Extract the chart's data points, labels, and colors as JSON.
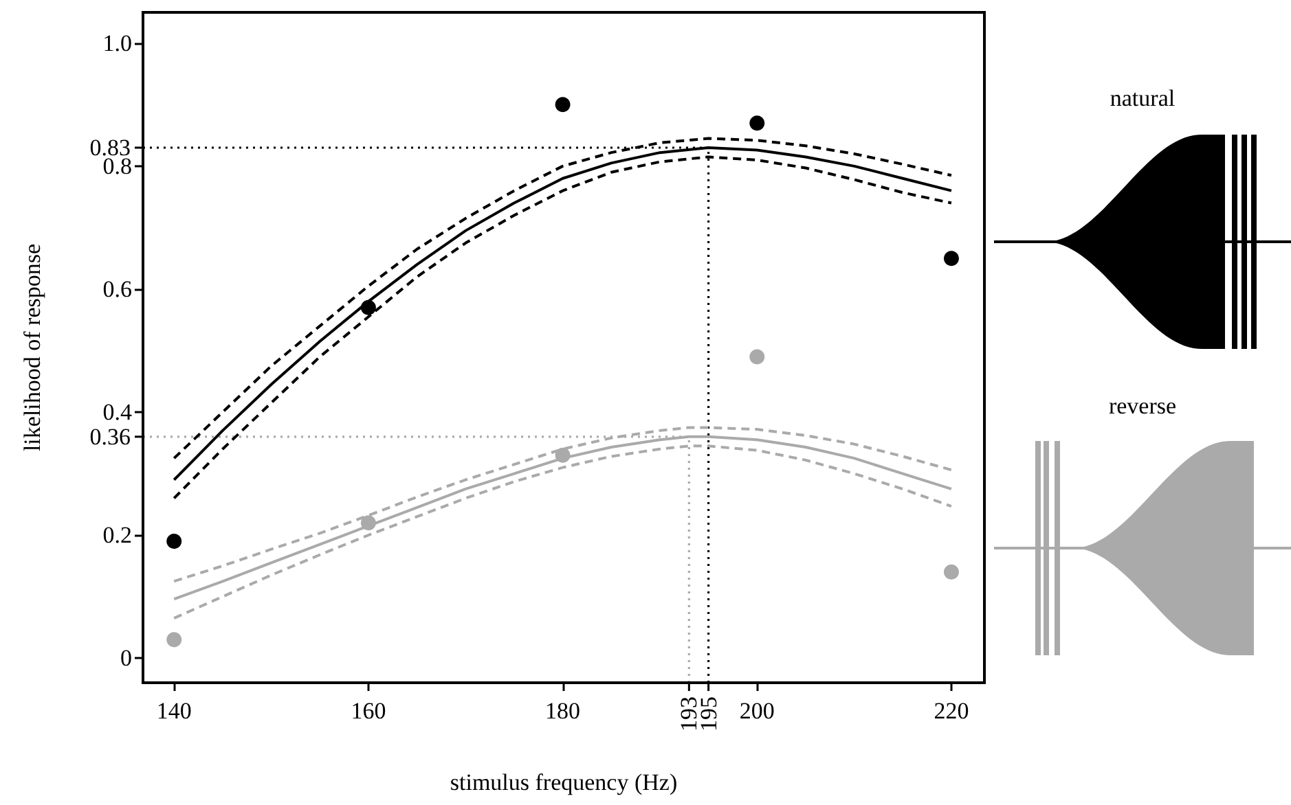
{
  "chart_data": {
    "type": "scatter",
    "xlabel": "stimulus frequency (Hz)",
    "ylabel": "likelihood of response",
    "annotations": [
      "natural",
      "reverse"
    ],
    "xlim": [
      136.8,
      223.4
    ],
    "xticks": [
      140,
      160,
      180,
      200,
      220
    ],
    "ylim": [
      -0.04,
      1.05
    ],
    "yticks": [
      0,
      0.2,
      0.4,
      0.6,
      0.8,
      {
        "value": 1,
        "label": "1.0"
      }
    ],
    "grid": false,
    "ref_lines": [
      {
        "axis": "y",
        "value": 0.83,
        "label": "0.83",
        "color": "#000000",
        "line_style": "dotted"
      },
      {
        "axis": "x",
        "value": 195,
        "label": "195",
        "color": "#000000",
        "line_style": "dotted"
      },
      {
        "axis": "y",
        "value": 0.36,
        "label": "0.36",
        "color": "#aaaaaa",
        "line_style": "dotted"
      },
      {
        "axis": "x",
        "value": 193,
        "label": "193",
        "color": "#aaaaaa",
        "line_style": "dotted"
      }
    ],
    "series": [
      {
        "marker": "circle",
        "color": "#000000",
        "x": [
          140,
          160,
          180,
          200,
          220
        ],
        "values": [
          0.19,
          0.57,
          0.9,
          0.87,
          0.65
        ]
      },
      {
        "type": "line",
        "marker": "none",
        "line_style": "solid",
        "color": "#000000",
        "x": [
          140,
          145,
          150,
          155,
          160,
          165,
          170,
          175,
          180,
          185,
          190,
          195,
          200,
          205,
          210,
          215,
          220
        ],
        "values": [
          0.29,
          0.37,
          0.445,
          0.515,
          0.58,
          0.64,
          0.695,
          0.74,
          0.78,
          0.805,
          0.822,
          0.83,
          0.826,
          0.815,
          0.8,
          0.78,
          0.76
        ]
      },
      {
        "type": "line",
        "marker": "none",
        "line_style": "dashed",
        "color": "#000000",
        "x": [
          140,
          145,
          150,
          155,
          160,
          165,
          170,
          175,
          180,
          185,
          190,
          195,
          200,
          205,
          210,
          215,
          220
        ],
        "values": [
          0.26,
          0.34,
          0.415,
          0.49,
          0.555,
          0.62,
          0.675,
          0.72,
          0.76,
          0.79,
          0.807,
          0.815,
          0.81,
          0.797,
          0.778,
          0.757,
          0.74
        ]
      },
      {
        "type": "line",
        "marker": "none",
        "line_style": "dashed",
        "color": "#000000",
        "x": [
          140,
          145,
          150,
          155,
          160,
          165,
          170,
          175,
          180,
          185,
          190,
          195,
          200,
          205,
          210,
          215,
          220
        ],
        "values": [
          0.325,
          0.4,
          0.475,
          0.54,
          0.605,
          0.665,
          0.715,
          0.76,
          0.8,
          0.822,
          0.838,
          0.845,
          0.842,
          0.833,
          0.82,
          0.803,
          0.785
        ]
      },
      {
        "marker": "circle",
        "color": "#aaaaaa",
        "x": [
          140,
          160,
          180,
          200,
          220
        ],
        "values": [
          0.03,
          0.22,
          0.33,
          0.49,
          0.14
        ]
      },
      {
        "type": "line",
        "marker": "none",
        "line_style": "solid",
        "color": "#aaaaaa",
        "x": [
          140,
          145,
          150,
          155,
          160,
          165,
          170,
          175,
          180,
          185,
          190,
          193,
          195,
          200,
          205,
          210,
          215,
          220
        ],
        "values": [
          0.096,
          0.125,
          0.155,
          0.185,
          0.215,
          0.245,
          0.275,
          0.3,
          0.325,
          0.343,
          0.355,
          0.36,
          0.36,
          0.355,
          0.343,
          0.325,
          0.3,
          0.275
        ]
      },
      {
        "type": "line",
        "marker": "none",
        "line_style": "dashed",
        "color": "#aaaaaa",
        "x": [
          140,
          145,
          150,
          155,
          160,
          165,
          170,
          175,
          180,
          185,
          190,
          193,
          195,
          200,
          205,
          210,
          215,
          220
        ],
        "values": [
          0.065,
          0.1,
          0.135,
          0.168,
          0.2,
          0.23,
          0.26,
          0.287,
          0.31,
          0.328,
          0.34,
          0.345,
          0.345,
          0.338,
          0.322,
          0.3,
          0.275,
          0.247
        ]
      },
      {
        "type": "line",
        "marker": "none",
        "line_style": "dashed",
        "color": "#aaaaaa",
        "x": [
          140,
          145,
          150,
          155,
          160,
          165,
          170,
          175,
          180,
          185,
          190,
          193,
          195,
          200,
          205,
          210,
          215,
          220
        ],
        "values": [
          0.125,
          0.15,
          0.177,
          0.203,
          0.232,
          0.262,
          0.29,
          0.315,
          0.34,
          0.358,
          0.37,
          0.375,
          0.375,
          0.372,
          0.362,
          0.348,
          0.328,
          0.306
        ]
      }
    ]
  }
}
